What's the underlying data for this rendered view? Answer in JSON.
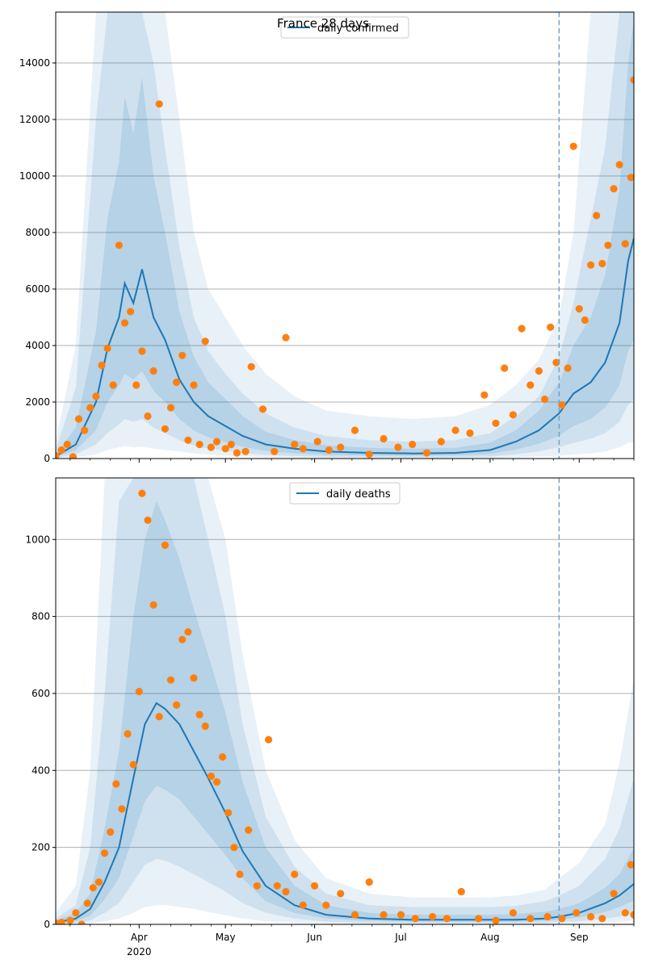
{
  "figure": {
    "title": "France 28 days"
  },
  "colors": {
    "model": "#1f77b4",
    "observed": "#ff7f0e",
    "band": "#1f77b4",
    "grid": "#b0b0b0",
    "forecast_line": "#6ea3c1"
  },
  "chart_data": [
    {
      "type": "line",
      "panel": "top",
      "legend": [
        "daily confirmed"
      ],
      "legend_position": "top-center",
      "ylim": [
        0,
        15800
      ],
      "yticks": [
        0,
        2000,
        4000,
        6000,
        8000,
        10000,
        12000,
        14000
      ],
      "ytick_labels": [
        "0",
        "2000",
        "4000",
        "6000",
        "8000",
        "10000",
        "12000",
        "14000"
      ],
      "xticks": [
        "Apr",
        "May",
        "Jun",
        "Jul",
        "Aug",
        "Sep"
      ],
      "x_year_label": "2020",
      "x_range": [
        "2020-03-03",
        "2020-09-20"
      ],
      "forecast_start": "2020-08-25",
      "grid": "horizontal",
      "model_series": {
        "name": "daily confirmed",
        "x": [
          "2020-03-03",
          "2020-03-10",
          "2020-03-17",
          "2020-03-21",
          "2020-03-25",
          "2020-03-27",
          "2020-03-30",
          "2020-04-02",
          "2020-04-06",
          "2020-04-10",
          "2020-04-15",
          "2020-04-20",
          "2020-04-25",
          "2020-05-01",
          "2020-05-07",
          "2020-05-15",
          "2020-05-25",
          "2020-06-05",
          "2020-06-20",
          "2020-07-05",
          "2020-07-20",
          "2020-08-01",
          "2020-08-10",
          "2020-08-18",
          "2020-08-25",
          "2020-08-30",
          "2020-09-05",
          "2020-09-10",
          "2020-09-15",
          "2020-09-18",
          "2020-09-20"
        ],
        "y": [
          80,
          500,
          2000,
          3900,
          5000,
          6200,
          5500,
          6700,
          5000,
          4200,
          2800,
          2000,
          1500,
          1150,
          800,
          500,
          350,
          250,
          200,
          180,
          200,
          300,
          600,
          1000,
          1600,
          2300,
          2700,
          3400,
          4800,
          7000,
          7800
        ]
      },
      "band_outer": {
        "lo": [
          0,
          50,
          150,
          300,
          400,
          450,
          400,
          420,
          350,
          300,
          250,
          180,
          140,
          110,
          80,
          50,
          30,
          20,
          15,
          10,
          15,
          20,
          40,
          70,
          100,
          140,
          180,
          250,
          400,
          550,
          600
        ],
        "hi": [
          600,
          4000,
          15800,
          15800,
          15800,
          15800,
          15800,
          15800,
          15800,
          15800,
          12000,
          8000,
          6000,
          5000,
          4000,
          3000,
          2200,
          1700,
          1500,
          1400,
          1500,
          1900,
          2600,
          3500,
          5000,
          8000,
          15800,
          15800,
          15800,
          15800,
          15800
        ]
      },
      "band_mid": {
        "lo": [
          20,
          150,
          500,
          900,
          1200,
          1400,
          1300,
          1400,
          1100,
          900,
          650,
          450,
          350,
          280,
          200,
          130,
          90,
          60,
          50,
          45,
          50,
          70,
          150,
          250,
          400,
          550,
          700,
          900,
          1300,
          1900,
          2100
        ],
        "hi": [
          300,
          2500,
          12000,
          15800,
          15800,
          15800,
          15800,
          15800,
          14000,
          11000,
          7500,
          5000,
          3800,
          3000,
          2300,
          1600,
          1100,
          800,
          650,
          600,
          650,
          900,
          1500,
          2200,
          3600,
          5500,
          8500,
          11000,
          15800,
          15800,
          15800
        ]
      },
      "band_inner": {
        "lo": [
          50,
          300,
          1000,
          2000,
          2600,
          3000,
          2800,
          3100,
          2400,
          2000,
          1400,
          1000,
          750,
          580,
          420,
          270,
          190,
          130,
          110,
          100,
          110,
          160,
          320,
          520,
          800,
          1150,
          1400,
          1800,
          2600,
          3800,
          4200
        ],
        "hi": [
          150,
          1100,
          4500,
          8500,
          10500,
          12800,
          11500,
          13500,
          10000,
          8000,
          5200,
          3600,
          2700,
          2100,
          1500,
          950,
          650,
          470,
          380,
          350,
          380,
          560,
          1000,
          1700,
          2700,
          4000,
          5000,
          6500,
          9500,
          14000,
          15500
        ]
      },
      "observed": {
        "x": [
          "2020-03-03",
          "2020-03-05",
          "2020-03-07",
          "2020-03-09",
          "2020-03-11",
          "2020-03-13",
          "2020-03-15",
          "2020-03-17",
          "2020-03-19",
          "2020-03-21",
          "2020-03-23",
          "2020-03-25",
          "2020-03-27",
          "2020-03-29",
          "2020-03-31",
          "2020-04-02",
          "2020-04-04",
          "2020-04-06",
          "2020-04-08",
          "2020-04-10",
          "2020-04-12",
          "2020-04-14",
          "2020-04-16",
          "2020-04-18",
          "2020-04-20",
          "2020-04-22",
          "2020-04-24",
          "2020-04-26",
          "2020-04-28",
          "2020-05-01",
          "2020-05-03",
          "2020-05-05",
          "2020-05-08",
          "2020-05-10",
          "2020-05-14",
          "2020-05-18",
          "2020-05-22",
          "2020-05-25",
          "2020-05-28",
          "2020-06-02",
          "2020-06-06",
          "2020-06-10",
          "2020-06-15",
          "2020-06-20",
          "2020-06-25",
          "2020-06-30",
          "2020-07-05",
          "2020-07-10",
          "2020-07-15",
          "2020-07-20",
          "2020-07-25",
          "2020-07-30",
          "2020-08-03",
          "2020-08-06",
          "2020-08-09",
          "2020-08-12",
          "2020-08-15",
          "2020-08-18",
          "2020-08-20",
          "2020-08-22",
          "2020-08-24",
          "2020-08-26",
          "2020-08-28",
          "2020-08-30",
          "2020-09-01",
          "2020-09-03",
          "2020-09-05",
          "2020-09-07",
          "2020-09-09",
          "2020-09-11",
          "2020-09-13",
          "2020-09-15",
          "2020-09-17",
          "2020-09-19",
          "2020-09-20"
        ],
        "y": [
          100,
          300,
          500,
          60,
          1400,
          1000,
          1800,
          2200,
          3300,
          3900,
          2600,
          7550,
          4800,
          5200,
          2600,
          3800,
          1500,
          3100,
          12550,
          1050,
          1800,
          2700,
          3650,
          650,
          2600,
          500,
          4150,
          400,
          600,
          350,
          500,
          200,
          250,
          3250,
          1750,
          250,
          4280,
          500,
          350,
          600,
          300,
          400,
          1000,
          150,
          700,
          400,
          500,
          200,
          600,
          1000,
          900,
          2250,
          1250,
          3200,
          1550,
          4600,
          2600,
          3100,
          2100,
          4650,
          3400,
          1900,
          3200,
          11050,
          5300,
          4900,
          6850,
          8600,
          6900,
          7550,
          9550,
          10400,
          7600,
          9950,
          13400
        ]
      }
    },
    {
      "type": "line",
      "panel": "bottom",
      "legend": [
        "daily deaths"
      ],
      "legend_position": "top-center",
      "ylim": [
        0,
        1160
      ],
      "yticks": [
        0,
        200,
        400,
        600,
        800,
        1000
      ],
      "ytick_labels": [
        "0",
        "200",
        "400",
        "600",
        "800",
        "1000"
      ],
      "xticks": [
        "Apr",
        "May",
        "Jun",
        "Jul",
        "Aug",
        "Sep"
      ],
      "x_year_label": "2020",
      "x_range": [
        "2020-03-03",
        "2020-09-20"
      ],
      "forecast_start": "2020-08-25",
      "grid": "horizontal",
      "model_series": {
        "name": "daily deaths",
        "x": [
          "2020-03-03",
          "2020-03-10",
          "2020-03-15",
          "2020-03-20",
          "2020-03-25",
          "2020-03-30",
          "2020-04-03",
          "2020-04-07",
          "2020-04-10",
          "2020-04-15",
          "2020-04-20",
          "2020-04-25",
          "2020-05-01",
          "2020-05-07",
          "2020-05-15",
          "2020-05-25",
          "2020-06-05",
          "2020-06-20",
          "2020-07-05",
          "2020-07-20",
          "2020-08-01",
          "2020-08-10",
          "2020-08-20",
          "2020-08-25",
          "2020-09-01",
          "2020-09-10",
          "2020-09-15",
          "2020-09-20"
        ],
        "y": [
          5,
          15,
          40,
          110,
          200,
          380,
          520,
          575,
          560,
          520,
          450,
          380,
          290,
          190,
          100,
          50,
          25,
          15,
          12,
          12,
          12,
          12,
          15,
          20,
          30,
          55,
          75,
          105
        ]
      },
      "band_outer": {
        "lo": [
          0,
          0,
          2,
          8,
          15,
          30,
          45,
          50,
          50,
          45,
          40,
          32,
          24,
          15,
          8,
          4,
          2,
          1,
          1,
          1,
          1,
          1,
          1,
          2,
          3,
          5,
          7,
          10
        ],
        "hi": [
          30,
          100,
          400,
          1160,
          1160,
          1160,
          1160,
          1160,
          1160,
          1160,
          1160,
          1160,
          1000,
          700,
          400,
          220,
          120,
          80,
          70,
          70,
          70,
          75,
          90,
          120,
          160,
          260,
          420,
          640
        ]
      },
      "band_mid": {
        "lo": [
          1,
          4,
          10,
          30,
          55,
          110,
          155,
          170,
          165,
          150,
          130,
          110,
          85,
          55,
          30,
          15,
          7,
          4,
          3,
          3,
          3,
          3,
          4,
          6,
          8,
          15,
          20,
          30
        ],
        "hi": [
          15,
          50,
          200,
          600,
          1100,
          1160,
          1160,
          1160,
          1160,
          1160,
          1160,
          1000,
          800,
          520,
          280,
          150,
          80,
          50,
          45,
          45,
          45,
          48,
          60,
          75,
          100,
          170,
          250,
          380
        ]
      },
      "band_inner": {
        "lo": [
          2,
          8,
          22,
          65,
          120,
          230,
          320,
          360,
          350,
          325,
          280,
          235,
          180,
          120,
          60,
          30,
          15,
          9,
          7,
          7,
          7,
          7,
          9,
          12,
          18,
          32,
          45,
          62
        ],
        "hi": [
          10,
          30,
          80,
          250,
          450,
          800,
          1000,
          1100,
          1050,
          950,
          820,
          700,
          550,
          370,
          200,
          100,
          50,
          30,
          25,
          25,
          25,
          27,
          33,
          40,
          55,
          95,
          130,
          200
        ]
      },
      "observed": {
        "x": [
          "2020-03-03",
          "2020-03-05",
          "2020-03-08",
          "2020-03-10",
          "2020-03-12",
          "2020-03-14",
          "2020-03-16",
          "2020-03-18",
          "2020-03-20",
          "2020-03-22",
          "2020-03-24",
          "2020-03-26",
          "2020-03-28",
          "2020-03-30",
          "2020-04-01",
          "2020-04-02",
          "2020-04-04",
          "2020-04-06",
          "2020-04-08",
          "2020-04-10",
          "2020-04-12",
          "2020-04-14",
          "2020-04-16",
          "2020-04-18",
          "2020-04-20",
          "2020-04-22",
          "2020-04-24",
          "2020-04-26",
          "2020-04-28",
          "2020-04-30",
          "2020-05-02",
          "2020-05-04",
          "2020-05-06",
          "2020-05-09",
          "2020-05-12",
          "2020-05-16",
          "2020-05-19",
          "2020-05-22",
          "2020-05-25",
          "2020-05-28",
          "2020-06-01",
          "2020-06-05",
          "2020-06-10",
          "2020-06-15",
          "2020-06-20",
          "2020-06-25",
          "2020-07-01",
          "2020-07-06",
          "2020-07-12",
          "2020-07-17",
          "2020-07-22",
          "2020-07-28",
          "2020-08-03",
          "2020-08-09",
          "2020-08-15",
          "2020-08-21",
          "2020-08-26",
          "2020-08-31",
          "2020-09-05",
          "2020-09-09",
          "2020-09-13",
          "2020-09-17",
          "2020-09-19",
          "2020-09-20"
        ],
        "y": [
          3,
          5,
          10,
          30,
          0,
          55,
          95,
          110,
          185,
          240,
          365,
          300,
          495,
          415,
          605,
          1120,
          1050,
          830,
          540,
          985,
          635,
          570,
          740,
          760,
          640,
          545,
          515,
          385,
          370,
          435,
          290,
          200,
          130,
          245,
          100,
          480,
          100,
          85,
          130,
          50,
          100,
          50,
          80,
          25,
          110,
          25,
          25,
          15,
          20,
          15,
          85,
          15,
          10,
          30,
          15,
          20,
          15,
          30,
          20,
          15,
          80,
          30,
          155,
          25
        ]
      }
    }
  ]
}
